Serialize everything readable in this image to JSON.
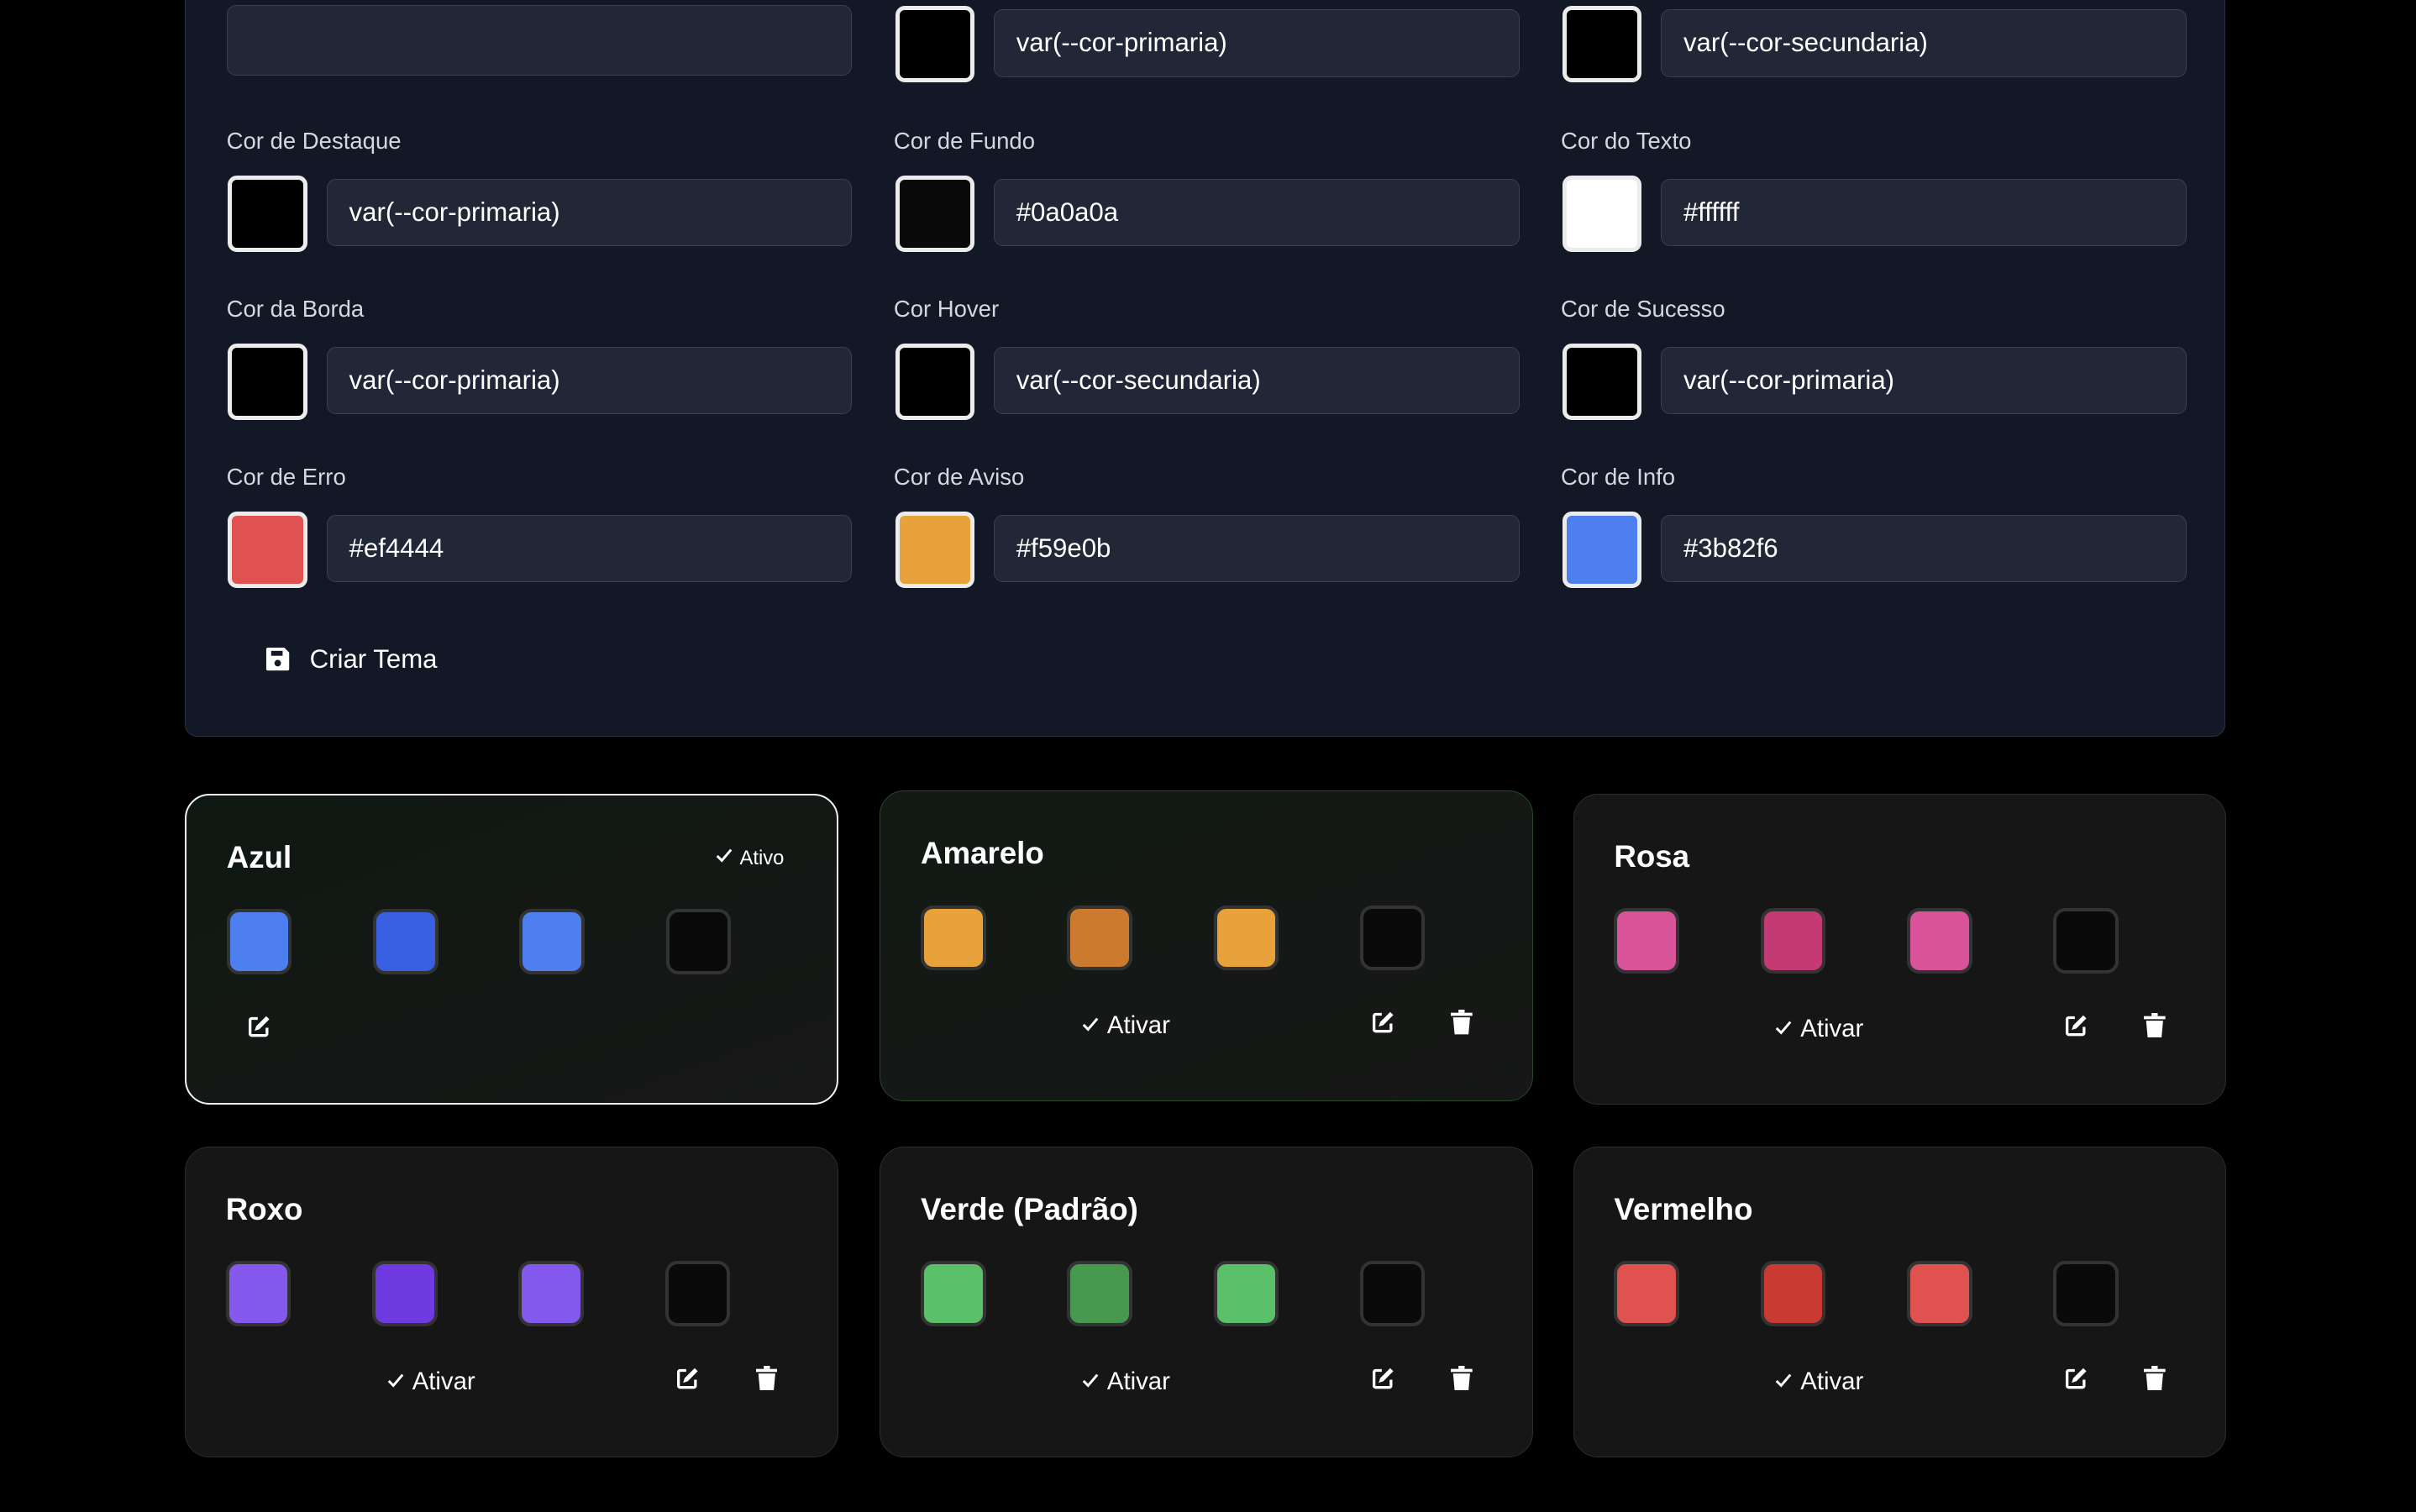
{
  "form": {
    "top_row": [
      {
        "label": "",
        "swatch": null,
        "value": ""
      },
      {
        "label": "",
        "swatch": "#000000",
        "value": "var(--cor-primaria)"
      },
      {
        "label": "",
        "swatch": "#000000",
        "value": "var(--cor-secundaria)"
      }
    ],
    "fields": [
      {
        "label": "Cor de Destaque",
        "swatch": "#000000",
        "value": "var(--cor-primaria)"
      },
      {
        "label": "Cor de Fundo",
        "swatch": "#0a0a0a",
        "value": "#0a0a0a"
      },
      {
        "label": "Cor do Texto",
        "swatch": "#ffffff",
        "value": "#ffffff"
      },
      {
        "label": "Cor da Borda",
        "swatch": "#000000",
        "value": "var(--cor-primaria)"
      },
      {
        "label": "Cor Hover",
        "swatch": "#000000",
        "value": "var(--cor-secundaria)"
      },
      {
        "label": "Cor de Sucesso",
        "swatch": "#000000",
        "value": "var(--cor-primaria)"
      },
      {
        "label": "Cor de Erro",
        "swatch": "#e0524f",
        "value": "#ef4444"
      },
      {
        "label": "Cor de Aviso",
        "swatch": "#e8a23c",
        "value": "#f59e0b"
      },
      {
        "label": "Cor de Info",
        "swatch": "#4d80ee",
        "value": "#3b82f6"
      }
    ],
    "create_label": "Criar Tema",
    "create_icon": "save-icon"
  },
  "themes": [
    {
      "name": "Azul",
      "state": "active",
      "badge": "Ativo",
      "colors": [
        "#4d80ee",
        "#3960e0",
        "#4d80ee",
        "#0a0a0a"
      ],
      "deletable": false
    },
    {
      "name": "Amarelo",
      "state": "hover",
      "activate": "Ativar",
      "colors": [
        "#e8a23c",
        "#cc7a2e",
        "#e8a23c",
        "#0a0a0a"
      ],
      "deletable": true
    },
    {
      "name": "Rosa",
      "state": "",
      "activate": "Ativar",
      "colors": [
        "#d9549a",
        "#c43a74",
        "#d9549a",
        "#0a0a0a"
      ],
      "deletable": true
    },
    {
      "name": "Roxo",
      "state": "",
      "activate": "Ativar",
      "colors": [
        "#8459ee",
        "#6f3ae0",
        "#8459ee",
        "#0a0a0a"
      ],
      "deletable": true
    },
    {
      "name": "Verde (Padrão)",
      "state": "",
      "activate": "Ativar",
      "colors": [
        "#5bc06a",
        "#46994f",
        "#5bc06a",
        "#0a0a0a"
      ],
      "deletable": true
    },
    {
      "name": "Vermelho",
      "state": "",
      "activate": "Ativar",
      "colors": [
        "#e0524f",
        "#c93a33",
        "#e0524f",
        "#0a0a0a"
      ],
      "deletable": true
    }
  ]
}
